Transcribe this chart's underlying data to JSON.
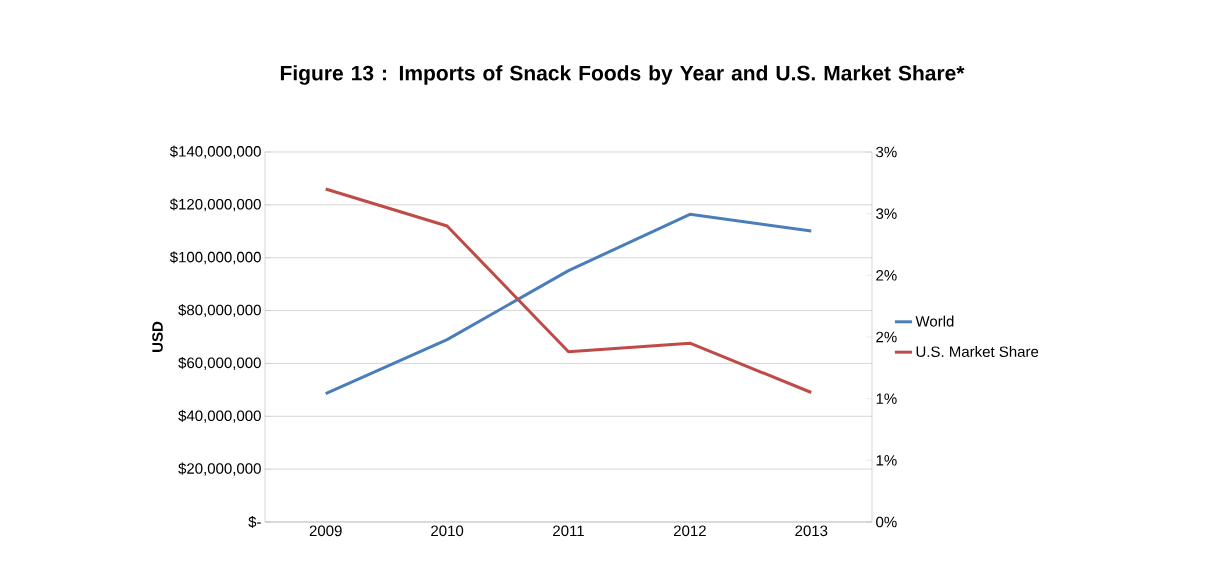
{
  "chart_data": {
    "type": "line",
    "title": "Figure 13 : Imports of Snack Foods by Year and U.S. Market Share*",
    "ylabel": "USD",
    "categories": [
      "2009",
      "2010",
      "2011",
      "2012",
      "2013"
    ],
    "series": [
      {
        "name": "World",
        "color": "#4a7ebb",
        "values": [
          48600000,
          69000000,
          95100000,
          116400000,
          110100000
        ]
      },
      {
        "name": "U.S. Market Share",
        "color": "#be4b48",
        "axis": "y2",
        "values": [
          2.7,
          2.4,
          1.38,
          1.45,
          1.05
        ]
      }
    ],
    "ylim": [
      0,
      140000000
    ],
    "yticks": [
      {
        "value": 0,
        "label": "$-"
      },
      {
        "value": 20000000,
        "label": "$20,000,000"
      },
      {
        "value": 40000000,
        "label": "$40,000,000"
      },
      {
        "value": 60000000,
        "label": "$60,000,000"
      },
      {
        "value": 80000000,
        "label": "$80,000,000"
      },
      {
        "value": 100000000,
        "label": "$100,000,000"
      },
      {
        "value": 120000000,
        "label": "$120,000,000"
      },
      {
        "value": 140000000,
        "label": "$140,000,000"
      }
    ],
    "y2lim": [
      0,
      3
    ],
    "y2ticks": [
      {
        "value": 0,
        "label": "0%"
      },
      {
        "value": 0.5,
        "label": "1%"
      },
      {
        "value": 1,
        "label": "1%"
      },
      {
        "value": 1.5,
        "label": "2%"
      },
      {
        "value": 2,
        "label": "2%"
      },
      {
        "value": 2.5,
        "label": "3%"
      },
      {
        "value": 3,
        "label": "3%"
      }
    ],
    "grid": "y",
    "legend": "right",
    "marker": "none",
    "line_style": "solid"
  }
}
